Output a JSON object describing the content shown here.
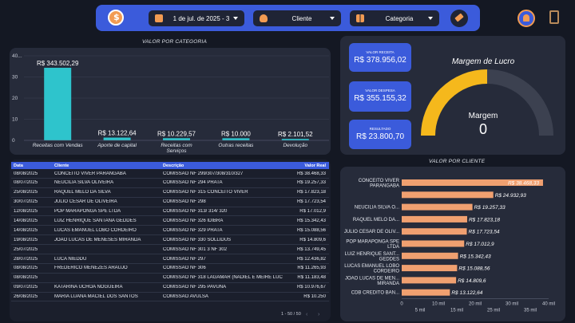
{
  "toolbar": {
    "date_label": "1 de jul. de 2025 - 3",
    "client_label": "Cliente",
    "category_label": "Categoria"
  },
  "category_chart": {
    "title": "VALOR POR CATEGORIA"
  },
  "kpis": [
    {
      "label": "VALOR RECEITA",
      "value": "R$ 378.956,02"
    },
    {
      "label": "VALOR DESPESA",
      "value": "R$ 355.155,32"
    },
    {
      "label": "RESULTADO",
      "value": "R$ 23.800,70"
    }
  ],
  "gauge": {
    "title": "Margem de Lucro",
    "label": "Margem",
    "value": "0",
    "fraction": 0.5
  },
  "table": {
    "headers": [
      "Data",
      "Cliente",
      "Descrição",
      "Valor Real"
    ],
    "rows": [
      [
        "08/08/2025",
        "CONCEITO VIVER PARANGABA",
        "COMISSAO NF 299/307/308/310/327",
        "R$ 38.468,33"
      ],
      [
        "08/07/2025",
        "NEUCILIA SILVA OLIVEIRA",
        "COMISSAO NF 294 PRATA",
        "R$ 19.257,33"
      ],
      [
        "25/08/2025",
        "RAQUEL MELO DA SILVA",
        "COMISSAO NF 315 CONCEITO VIVER",
        "R$ 17.823,18"
      ],
      [
        "30/07/2025",
        "JULIO CESAR DE OLIVEIRA",
        "COMISSAO NF 298",
        "R$ 17.723,54"
      ],
      [
        "12/08/2025",
        "POP MARAPONGA SPE LTDA",
        "COMISSAO NF 313/ 314/ 320",
        "R$ 17.012,9"
      ],
      [
        "14/08/2025",
        "LUIZ HENRIQUE SANTANA GEDDES",
        "COMISSAO NF 326 IDIBRA",
        "R$ 15.342,43"
      ],
      [
        "14/08/2025",
        "LUCAS EMANUEL LOBO CORDEIRO",
        "COMISSAO NF 329 PRATA",
        "R$ 15.088,56"
      ],
      [
        "19/08/2025",
        "JOAO LUCAS DE MENESES MIRANDA",
        "COMISSAO NF 330 SOLLIDUS",
        "R$ 14.809,6"
      ],
      [
        "25/07/2025",
        "",
        "COMISSAO NF 301 3 NF 302",
        "R$ 13.749,45"
      ],
      [
        "28/07/2025",
        "LUCA NIEDDU",
        "COMISSAO NF 297",
        "R$ 12.436,82"
      ],
      [
        "08/08/2025",
        "FREDERICO MENEZES ARAUJO",
        "COMISSAO NF 306",
        "R$ 11.265,93"
      ],
      [
        "08/08/2025",
        "",
        "COMISSAO NF 318 LAGAMAR (NADIEL E MEIRE LUCIA)",
        "R$ 11.183,48"
      ],
      [
        "09/07/2025",
        "KATARINA UCHOA NOGUEIRA",
        "COMISSAO NF 295 PAVUNA",
        "R$ 10.976,67"
      ],
      [
        "26/08/2025",
        "MARIA LUANA MACIEL DOS SANTOS",
        "COMISSAO AVULSA",
        "R$ 10.250"
      ]
    ],
    "pagination": "1 - 50 / 50"
  },
  "client_chart": {
    "title": "VALOR POR CLIENTE"
  },
  "chart_data": [
    {
      "type": "bar",
      "title": "VALOR POR CATEGORIA",
      "categories": [
        "Receitas com Vendas",
        "Aporte de capital",
        "Receitas com Serviços",
        "Outras receitas",
        "Devolução"
      ],
      "values": [
        343502.29,
        13122.64,
        10229.57,
        10000,
        2101.52
      ],
      "data_labels": [
        "R$ 343.502,29",
        "R$ 13.122,64",
        "R$ 10.229,57",
        "R$ 10.000",
        "R$ 2.101,52"
      ],
      "yticks": [
        "0",
        "10",
        "20",
        "30",
        "40..."
      ],
      "ylim": [
        0,
        400000
      ],
      "grid": true,
      "color": "#2ec4cc"
    },
    {
      "type": "bar",
      "orientation": "horizontal",
      "title": "VALOR POR CLIENTE",
      "categories": [
        "CONCEITO VIVER PARANGABA",
        "",
        "NEUCILIA SILVA O...",
        "RAQUEL MELO DA...",
        "JULIO CESAR DE OLIV...",
        "POP MARAPONGA SPE LTDA",
        "LUIZ HENRIQUE SANT... GEDDES",
        "LUCAS EMANUEL LOBO CORDEIRO",
        "JOAO LUCAS DE MEN... MIRANDA",
        "CDB CREDITO BAN..."
      ],
      "values": [
        38468.33,
        24932.93,
        19257.33,
        17823.18,
        17723.54,
        17012.9,
        15342.43,
        15088.56,
        14809.6,
        13122.64
      ],
      "data_labels": [
        "R$ 38.468,33",
        "R$ 24.932,93",
        "R$ 19.257,33",
        "R$ 17.823,18",
        "R$ 17.723,54",
        "R$ 17.012,9",
        "R$ 15.342,43",
        "R$ 15.088,56",
        "R$ 14.809,6",
        "R$ 13.122,64"
      ],
      "xticks_top": [
        "0",
        "10 mil",
        "20 mil",
        "30 mil",
        "40 mil"
      ],
      "xticks_bottom": [
        "5 mil",
        "15 mil",
        "25 mil",
        "35 mil"
      ],
      "xlim": [
        0,
        40000
      ],
      "color": "#f0a070"
    }
  ]
}
